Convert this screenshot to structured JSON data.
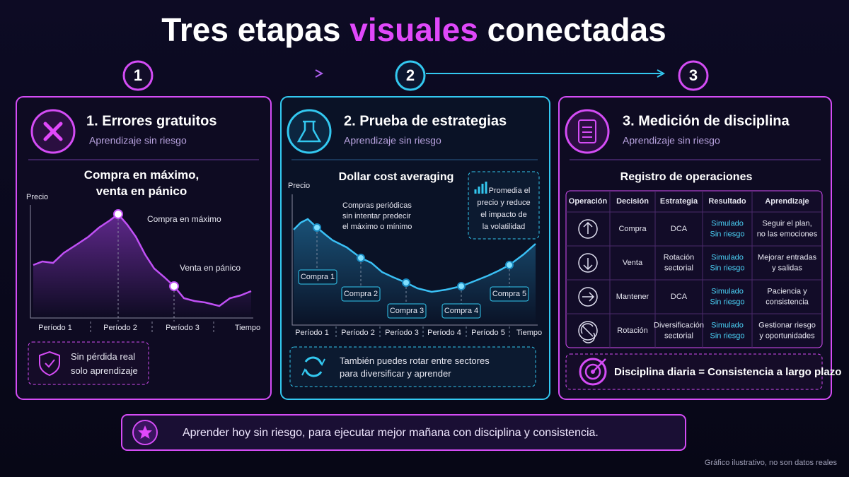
{
  "header": {
    "title_parts": [
      "Tres etapas",
      "visuales",
      "conectadas"
    ]
  },
  "steps": [
    "1",
    "2",
    "3"
  ],
  "panels": [
    {
      "title": "1. Errores gratuitos",
      "subtitle": "Aprendizaje sin riesgo",
      "chart_title": [
        "Compra en máximo,",
        "venta en pánico"
      ],
      "y_label": "Precio",
      "x_labels": [
        "Período 1",
        "Período 2",
        "Período 3",
        "Tiempo"
      ],
      "annotations": [
        "Compra en máximo",
        "Venta en pánico"
      ],
      "note": [
        "Sin pérdida real",
        "solo aprendizaje"
      ]
    },
    {
      "title": "2. Prueba de estrategias",
      "subtitle": "Aprendizaje sin riesgo",
      "chart_title": "Dollar cost averaging",
      "y_label": "Precio",
      "description": [
        "Compras periódicas",
        "sin intentar predecir",
        "el máximo o mínimo"
      ],
      "callout": [
        "Promedia el",
        "precio y reduce",
        "el impacto de",
        "la volatilidad"
      ],
      "buys": [
        "Compra 1",
        "Compra 2",
        "Compra 3",
        "Compra 4",
        "Compra 5"
      ],
      "x_labels": [
        "Período 1",
        "Período 2",
        "Período 3",
        "Período 4",
        "Período 5",
        "Tiempo"
      ],
      "note": [
        "También puedes rotar entre sectores",
        "para diversificar y aprender"
      ]
    },
    {
      "title": "3. Medición de disciplina",
      "subtitle": "Aprendizaje sin riesgo",
      "table_title": "Registro de operaciones",
      "table": {
        "header": [
          "Operación",
          "Decisión",
          "Estrategia",
          "Resultado",
          "Aprendizaje"
        ],
        "rows": [
          [
            [
              "Compra"
            ],
            [
              "DCA"
            ],
            [
              "Simulado",
              "Sin riesgo"
            ],
            [
              "Seguir el plan,",
              "no las emociones"
            ]
          ],
          [
            [
              "Venta"
            ],
            [
              "Rotación",
              "sectorial"
            ],
            [
              "Simulado",
              "Sin riesgo"
            ],
            [
              "Mejorar entradas",
              "y salidas"
            ]
          ],
          [
            [
              "Mantener"
            ],
            [
              "DCA"
            ],
            [
              "Simulado",
              "Sin riesgo"
            ],
            [
              "Paciencia y",
              "consistencia"
            ]
          ],
          [
            [
              "Rotación"
            ],
            [
              "Diversificación",
              "sectorial"
            ],
            [
              "Simulado",
              "Sin riesgo"
            ],
            [
              "Gestionar riesgo",
              "y oportunidades"
            ]
          ]
        ]
      },
      "note": "Disciplina diaria = Consistencia a largo plazo"
    }
  ],
  "footer": {
    "banner": "Aprender hoy sin riesgo, para ejecutar mejor mañana con disciplina y consistencia.",
    "disclaimer": "Gráfico ilustrativo, no son datos reales"
  }
}
